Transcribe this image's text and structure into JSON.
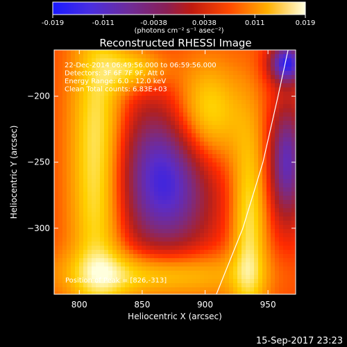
{
  "colorbar": {
    "tick_labels": [
      "-0.019",
      "-0.011",
      "-0.0038",
      "0.0038",
      "0.011",
      "0.019"
    ],
    "units": "(photons cm⁻² s⁻¹ asec⁻²)",
    "colors": [
      "#1a1aff",
      "#5a2cc8",
      "#7f2a7a",
      "#b02020",
      "#ff2a00",
      "#ff8a00",
      "#ffd000",
      "#ffffdd"
    ]
  },
  "chart_data": {
    "type": "heatmap",
    "title": "Reconstructed RHESSI Image",
    "xlabel": "Heliocentric X (arcsec)",
    "ylabel": "Heliocentric Y (arcsec)",
    "xlim": [
      780,
      972
    ],
    "ylim": [
      -350,
      -165
    ],
    "x_ticks": [
      800,
      850,
      900,
      950
    ],
    "y_ticks": [
      -200,
      -250,
      -300
    ],
    "x_tick_labels": [
      "800",
      "850",
      "900",
      "950"
    ],
    "y_tick_labels": [
      "−200",
      "−250",
      "−300"
    ],
    "value_range": [
      -0.019,
      0.019
    ],
    "annotations": [
      "22-Dec-2014 06:49:56.000 to 06:59:56.000",
      "Detectors: 3F 6F 7F 9F, Att 0",
      "Energy Range: 6.0 - 12.0 keV",
      "Clean     Total counts: 6.83E+03"
    ],
    "peak_label": "Position of Peak = [826,-313]",
    "peak_position": [
      826,
      -313
    ],
    "limb_curve": [
      [
        909,
        -350
      ],
      [
        930,
        -300
      ],
      [
        946,
        -250
      ],
      [
        958,
        -200
      ],
      [
        966,
        -165
      ]
    ]
  },
  "footer": {
    "timestamp": "15-Sep-2017 23:23"
  }
}
